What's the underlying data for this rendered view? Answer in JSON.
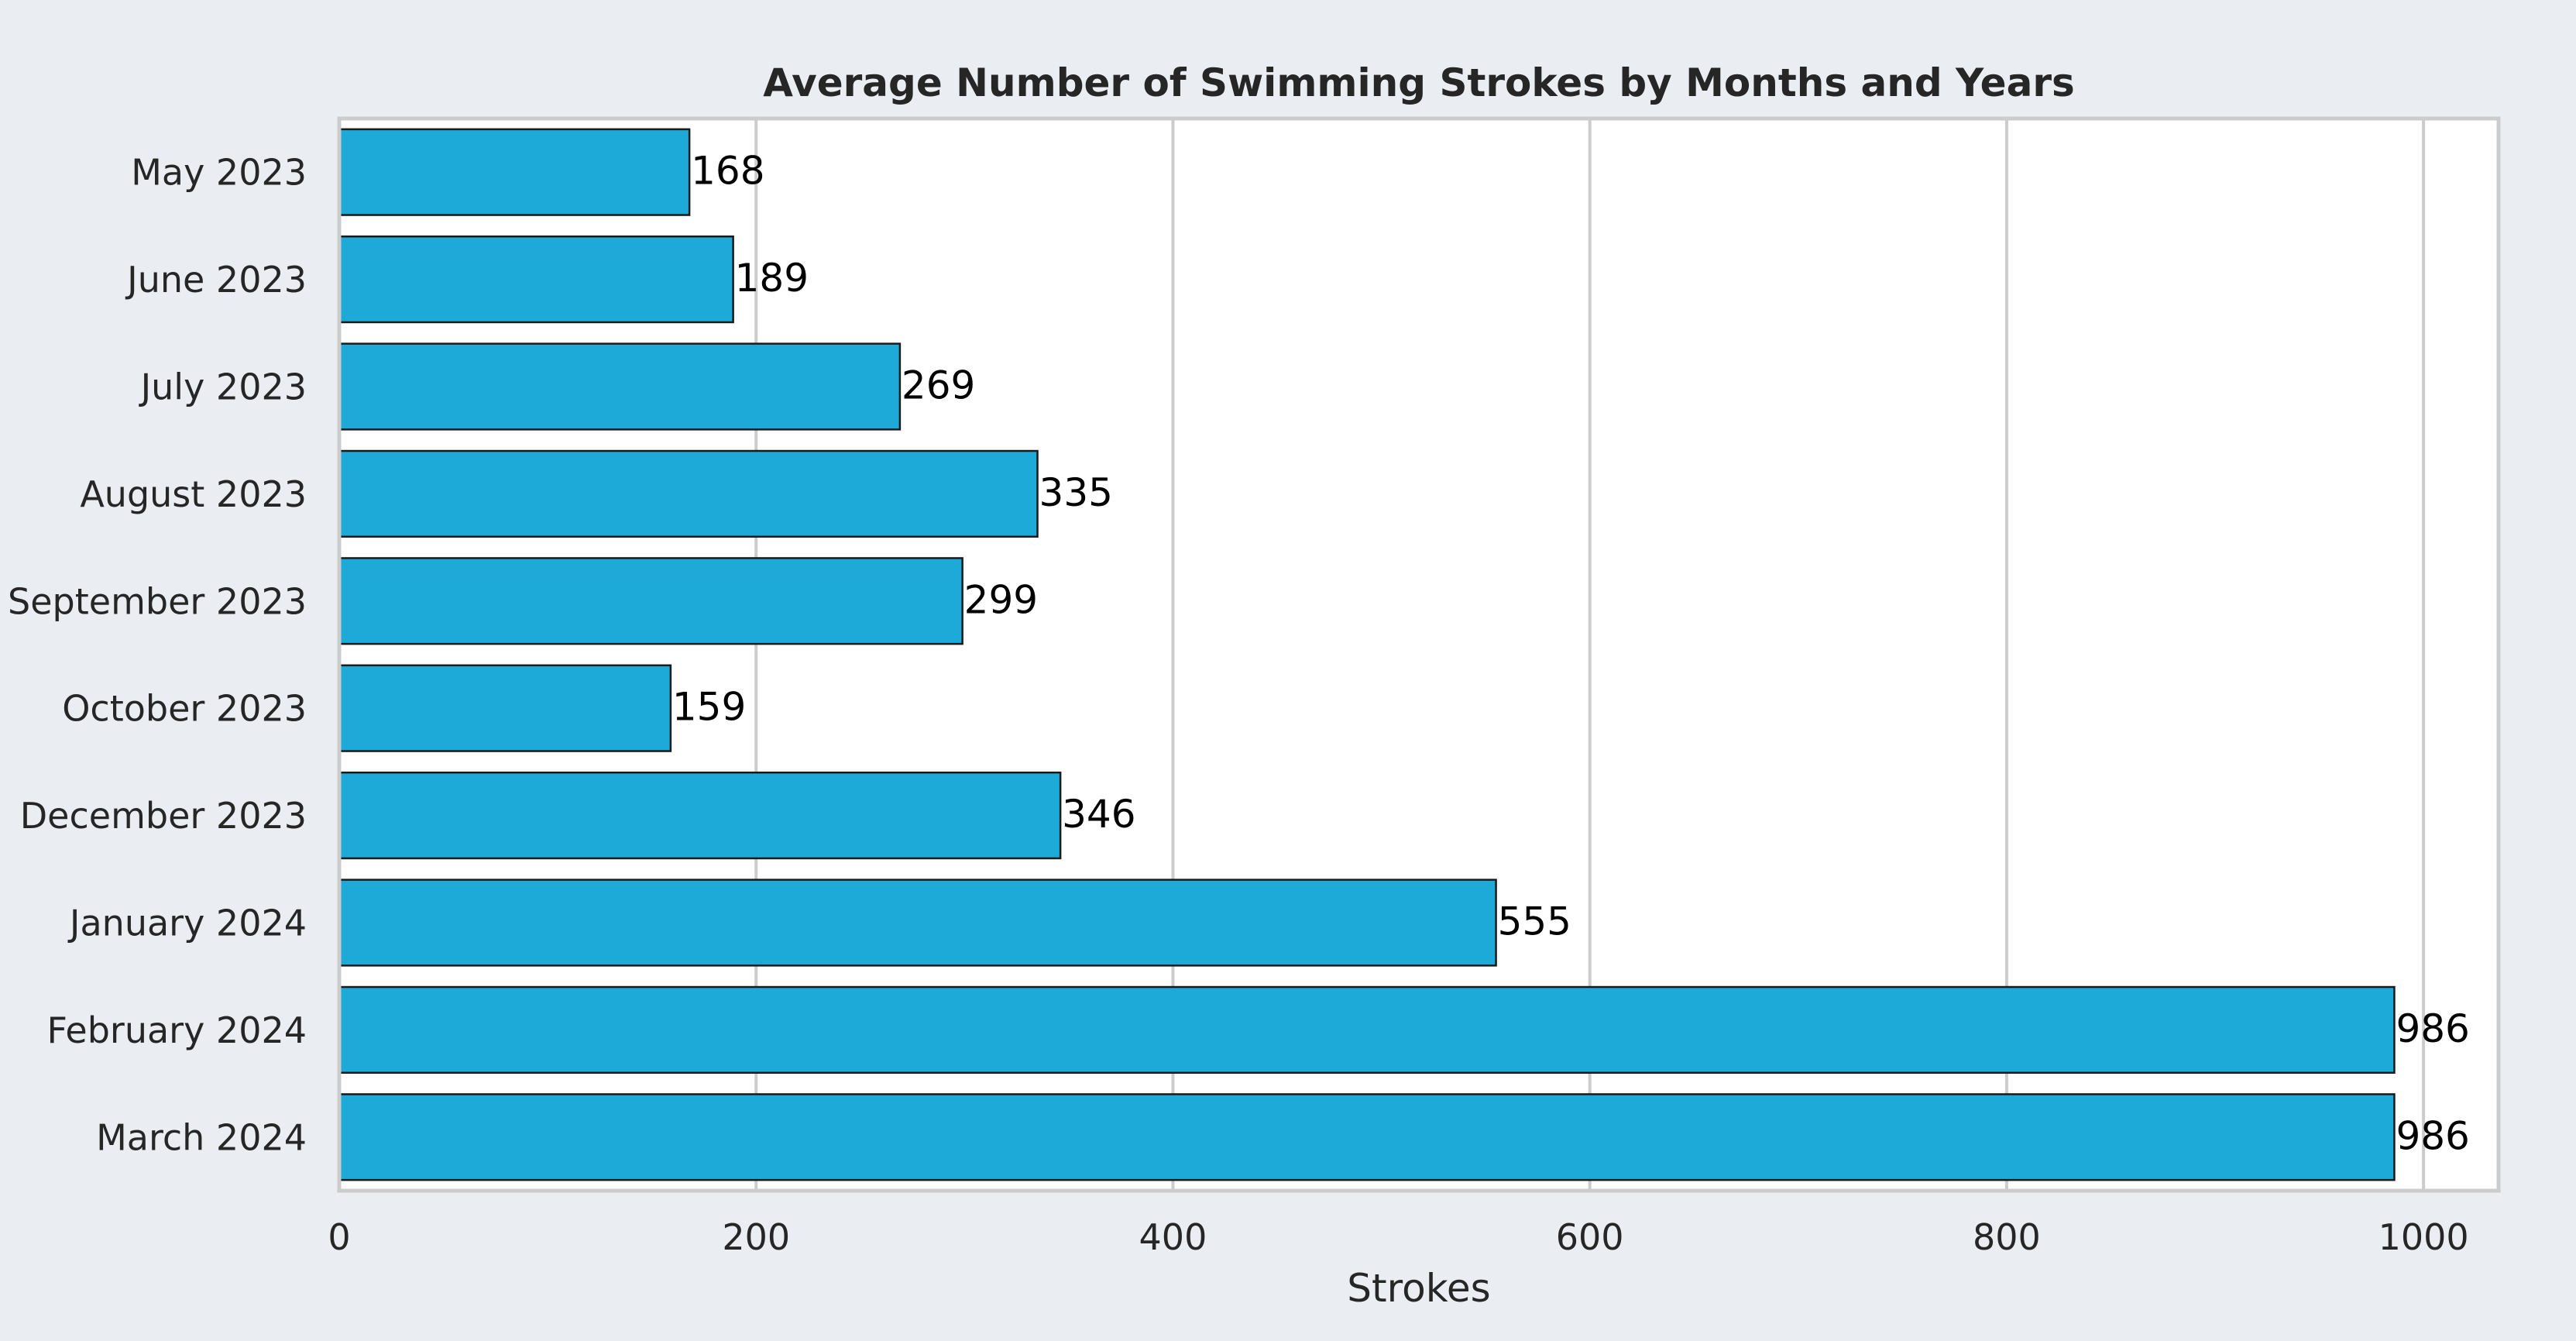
{
  "chart_data": {
    "type": "bar",
    "orientation": "horizontal",
    "title": "Average Number of Swimming Strokes by Months and Years",
    "xlabel": "Strokes",
    "ylabel": "",
    "categories": [
      "May 2023",
      "June 2023",
      "July 2023",
      "August 2023",
      "September 2023",
      "October 2023",
      "December 2023",
      "January 2024",
      "February 2024",
      "March 2024"
    ],
    "values": [
      168,
      189,
      269,
      335,
      299,
      159,
      346,
      555,
      986,
      986
    ],
    "data_labels": [
      "168",
      "189",
      "269",
      "335",
      "299",
      "159",
      "346",
      "555",
      "986",
      "986"
    ],
    "xlim": [
      0,
      1036
    ],
    "xticks": [
      0,
      200,
      400,
      600,
      800,
      1000
    ],
    "xtick_labels": [
      "0",
      "200",
      "400",
      "600",
      "800",
      "1000"
    ],
    "grid": "vertical",
    "legend": "none",
    "colors": {
      "bar": "#1eaad8",
      "bar_edge": "#1a1a1a",
      "figure_background": "#eaeef2",
      "axes_background": "#ffffff",
      "grid": "#cccccc",
      "text": "#262626"
    }
  }
}
